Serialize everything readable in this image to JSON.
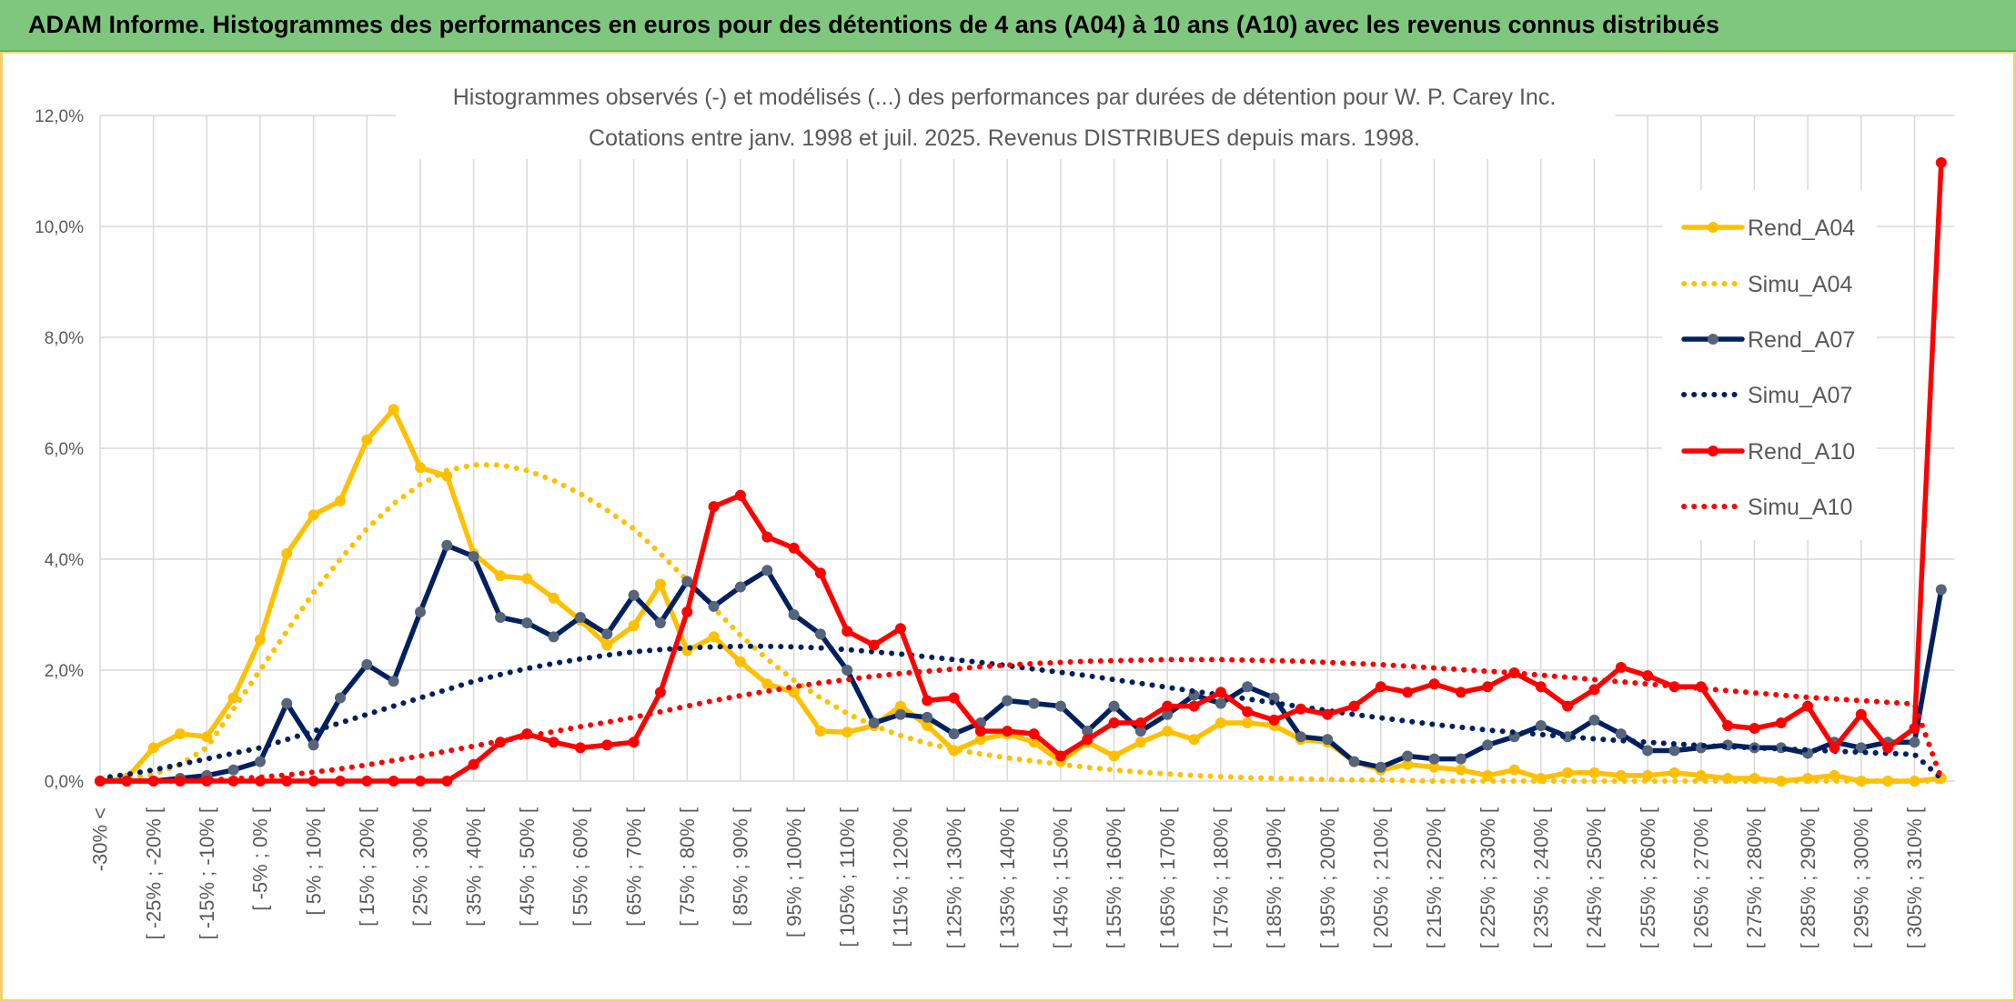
{
  "header": {
    "title": "ADAM Informe. Histogrammes des performances en euros pour des détentions de 4 ans (A04) à 10 ans (A10) avec les revenus connus distribués"
  },
  "chart_data": {
    "type": "line",
    "title": "Histogrammes observés (-) et modélisés (...) des performances par durées de détention pour W. P. Carey Inc.",
    "subtitle": "Cotations entre janv. 1998 et juil. 2025. Revenus DISTRIBUES depuis mars. 1998.",
    "xlabel": "",
    "ylabel": "",
    "ylim": [
      0,
      12
    ],
    "y_tick_values": [
      0,
      2,
      4,
      6,
      8,
      10,
      12
    ],
    "y_ticks": [
      "0,0%",
      "2,0%",
      "4,0%",
      "6,0%",
      "8,0%",
      "10,0%",
      "12,0%"
    ],
    "grid": true,
    "legend_position": "right",
    "categories": [
      "-30% <",
      "",
      "[ -25% ; -20% [",
      "",
      "[ -15% ; -10% [",
      "",
      "[ -5% ; 0% [",
      "",
      "[ 5% ; 10% [",
      "",
      "[ 15% ; 20% [",
      "",
      "[ 25% ; 30% [",
      "",
      "[ 35% ; 40% [",
      "",
      "[ 45% ; 50% [",
      "",
      "[ 55% ; 60% [",
      "",
      "[ 65% ; 70% [",
      "",
      "[ 75% ; 80% [",
      "",
      "[ 85% ; 90% [",
      "",
      "[ 95% ; 100% [",
      "",
      "[ 105% ; 110% [",
      "",
      "[ 115% ; 120% [",
      "",
      "[ 125% ; 130% [",
      "",
      "[ 135% ; 140% [",
      "",
      "[ 145% ; 150% [",
      "",
      "[ 155% ; 160% [",
      "",
      "[ 165% ; 170% [",
      "",
      "[ 175% ; 180% [",
      "",
      "[ 185% ; 190% [",
      "",
      "[ 195% ; 200% [",
      "",
      "[ 205% ; 210% [",
      "",
      "[ 215% ; 220% [",
      "",
      "[ 225% ; 230% [",
      "",
      "[ 235% ; 240% [",
      "",
      "[ 245% ; 250% [",
      "",
      "[ 255% ; 260% [",
      "",
      "[ 265% ; 270% [",
      "",
      "[ 275% ; 280% [",
      "",
      "[ 285% ; 290% [",
      "",
      "[ 295% ; 300% [",
      "",
      "[ 305% ; 310% [",
      ""
    ],
    "series": [
      {
        "name": "Rend_A04",
        "line": "solid",
        "color": "#FFC000",
        "marker_color": "#FFC000",
        "values": [
          0.0,
          0.05,
          0.6,
          0.85,
          0.8,
          1.5,
          2.55,
          4.1,
          4.8,
          5.05,
          6.15,
          6.7,
          5.65,
          5.5,
          4.1,
          3.7,
          3.65,
          3.3,
          2.9,
          2.45,
          2.8,
          3.55,
          2.35,
          2.6,
          2.15,
          1.75,
          1.6,
          0.9,
          0.88,
          1.0,
          1.35,
          1.0,
          0.55,
          0.75,
          0.85,
          0.7,
          0.35,
          0.7,
          0.45,
          0.7,
          0.9,
          0.75,
          1.05,
          1.05,
          1.0,
          0.75,
          0.7,
          0.35,
          0.2,
          0.3,
          0.25,
          0.2,
          0.1,
          0.2,
          0.05,
          0.15,
          0.15,
          0.1,
          0.1,
          0.15,
          0.1,
          0.05,
          0.05,
          0.0,
          0.05,
          0.1,
          0.0,
          0.0,
          0.0,
          0.05
        ]
      },
      {
        "name": "Simu_A04",
        "line": "dotted",
        "color": "#FFC000",
        "marker_color": null,
        "values": [
          0.0,
          0.05,
          0.12,
          0.3,
          0.6,
          1.3,
          2.0,
          2.7,
          3.4,
          4.0,
          4.55,
          5.0,
          5.35,
          5.6,
          5.7,
          5.7,
          5.6,
          5.42,
          5.18,
          4.88,
          4.55,
          4.1,
          3.62,
          3.12,
          2.63,
          2.2,
          1.82,
          1.5,
          1.22,
          1.0,
          0.82,
          0.68,
          0.57,
          0.49,
          0.42,
          0.36,
          0.3,
          0.25,
          0.2,
          0.16,
          0.13,
          0.1,
          0.08,
          0.06,
          0.05,
          0.04,
          0.03,
          0.02,
          0.02,
          0.01,
          0,
          0,
          0,
          0,
          0,
          0,
          0,
          0,
          0,
          0,
          0,
          0,
          0,
          0,
          0,
          0,
          0,
          0,
          0,
          0
        ]
      },
      {
        "name": "Rend_A07",
        "line": "solid",
        "color": "#002060",
        "marker_color": "#56657A",
        "values": [
          0.0,
          0.0,
          0.0,
          0.05,
          0.1,
          0.2,
          0.35,
          1.4,
          0.65,
          1.5,
          2.1,
          1.8,
          3.05,
          4.25,
          4.05,
          2.95,
          2.85,
          2.6,
          2.95,
          2.65,
          3.35,
          2.85,
          3.6,
          3.15,
          3.5,
          3.8,
          3.0,
          2.65,
          2.0,
          1.05,
          1.2,
          1.15,
          0.85,
          1.05,
          1.45,
          1.4,
          1.35,
          0.9,
          1.35,
          0.9,
          1.2,
          1.55,
          1.4,
          1.7,
          1.5,
          0.8,
          0.75,
          0.35,
          0.25,
          0.45,
          0.4,
          0.4,
          0.65,
          0.8,
          1.0,
          0.8,
          1.1,
          0.85,
          0.55,
          0.55,
          0.6,
          0.65,
          0.6,
          0.6,
          0.5,
          0.7,
          0.6,
          0.7,
          0.7,
          3.45
        ]
      },
      {
        "name": "Simu_A07",
        "line": "dotted",
        "color": "#002060",
        "marker_color": null,
        "values": [
          0.05,
          0.12,
          0.2,
          0.3,
          0.4,
          0.5,
          0.6,
          0.75,
          0.9,
          1.05,
          1.2,
          1.35,
          1.5,
          1.65,
          1.8,
          1.92,
          2.03,
          2.12,
          2.2,
          2.27,
          2.33,
          2.37,
          2.4,
          2.42,
          2.43,
          2.43,
          2.42,
          2.4,
          2.37,
          2.33,
          2.29,
          2.24,
          2.19,
          2.14,
          2.08,
          2.02,
          1.96,
          1.9,
          1.83,
          1.76,
          1.69,
          1.62,
          1.55,
          1.48,
          1.41,
          1.34,
          1.27,
          1.2,
          1.14,
          1.08,
          1.02,
          0.97,
          0.92,
          0.88,
          0.84,
          0.8,
          0.76,
          0.73,
          0.7,
          0.67,
          0.64,
          0.62,
          0.6,
          0.58,
          0.56,
          0.54,
          0.52,
          0.5,
          0.48,
          0.05
        ]
      },
      {
        "name": "Rend_A10",
        "line": "solid",
        "color": "#FF0000",
        "marker_color": "#FF0000",
        "values": [
          0,
          0,
          0,
          0,
          0,
          0,
          0,
          0,
          0,
          0,
          0,
          0,
          0,
          0,
          0.3,
          0.7,
          0.85,
          0.7,
          0.6,
          0.65,
          0.7,
          1.6,
          3.05,
          4.95,
          5.15,
          4.4,
          4.2,
          3.75,
          2.7,
          2.45,
          2.75,
          1.45,
          1.5,
          0.9,
          0.9,
          0.85,
          0.45,
          0.75,
          1.05,
          1.05,
          1.35,
          1.35,
          1.6,
          1.25,
          1.1,
          1.3,
          1.2,
          1.35,
          1.7,
          1.6,
          1.75,
          1.6,
          1.7,
          1.95,
          1.7,
          1.35,
          1.65,
          2.05,
          1.9,
          1.7,
          1.7,
          1.0,
          0.95,
          1.05,
          1.35,
          0.6,
          1.2,
          0.6,
          0.95,
          11.15
        ]
      },
      {
        "name": "Simu_A10",
        "line": "dotted",
        "color": "#FF0000",
        "marker_color": null,
        "values": [
          0,
          0,
          0,
          0,
          0.02,
          0.04,
          0.07,
          0.11,
          0.16,
          0.22,
          0.29,
          0.37,
          0.45,
          0.54,
          0.63,
          0.72,
          0.81,
          0.89,
          0.98,
          1.06,
          1.15,
          1.25,
          1.35,
          1.45,
          1.54,
          1.62,
          1.7,
          1.77,
          1.83,
          1.89,
          1.94,
          1.98,
          2.02,
          2.06,
          2.09,
          2.12,
          2.14,
          2.16,
          2.17,
          2.18,
          2.19,
          2.19,
          2.19,
          2.18,
          2.17,
          2.16,
          2.14,
          2.12,
          2.1,
          2.07,
          2.04,
          2.01,
          1.98,
          1.95,
          1.91,
          1.87,
          1.83,
          1.79,
          1.75,
          1.71,
          1.67,
          1.63,
          1.59,
          1.55,
          1.51,
          1.48,
          1.45,
          1.42,
          1.39,
          0.05
        ]
      }
    ]
  }
}
